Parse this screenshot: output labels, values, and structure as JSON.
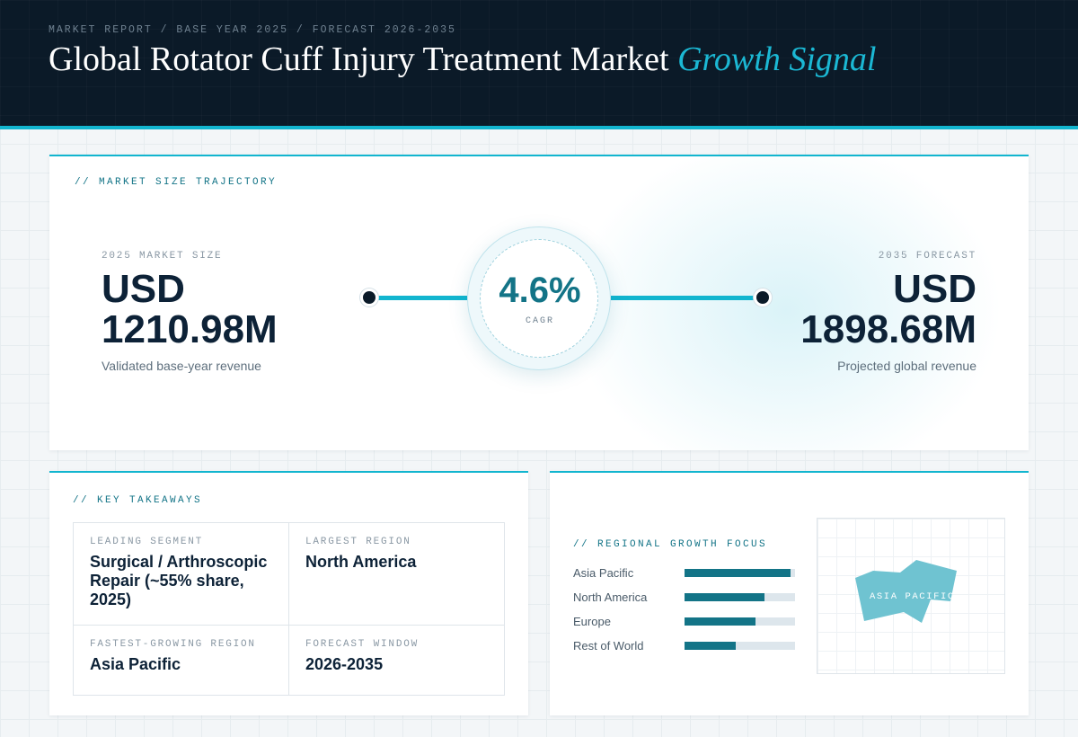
{
  "header": {
    "breadcrumb": "MARKET REPORT / BASE YEAR 2025 / FORECAST 2026-2035",
    "title_main": "Global Rotator Cuff Injury Treatment Market",
    "title_accent": "Growth Signal"
  },
  "trajectory": {
    "label": "// MARKET SIZE TRAJECTORY",
    "start": {
      "label": "2025 MARKET SIZE",
      "currency": "USD",
      "value": "1210.98M",
      "description": "Validated base-year revenue"
    },
    "cagr": {
      "value": "4.6%",
      "label": "CAGR"
    },
    "end": {
      "label": "2035 FORECAST",
      "currency": "USD",
      "value": "1898.68M",
      "description": "Projected global revenue"
    }
  },
  "takeaways": {
    "label": "// KEY TAKEAWAYS",
    "items": [
      {
        "label": "LEADING SEGMENT",
        "value": "Surgical / Arthroscopic Repair (~55% share, 2025)"
      },
      {
        "label": "LARGEST REGION",
        "value": "North America"
      },
      {
        "label": "FASTEST-GROWING REGION",
        "value": "Asia Pacific"
      },
      {
        "label": "FORECAST WINDOW",
        "value": "2026-2035"
      }
    ]
  },
  "regional": {
    "label": "// REGIONAL GROWTH FOCUS",
    "bars": [
      {
        "name": "Asia Pacific",
        "level": 0.96
      },
      {
        "name": "North America",
        "level": 0.72
      },
      {
        "name": "Europe",
        "level": 0.64
      },
      {
        "name": "Rest of World",
        "level": 0.46
      }
    ],
    "map_label": "ASIA PACIFIC"
  },
  "colors": {
    "header_bg": "#0b1a28",
    "accent": "#12b5cf",
    "teal_dark": "#137487",
    "map_fill": "#6fc3d1"
  }
}
